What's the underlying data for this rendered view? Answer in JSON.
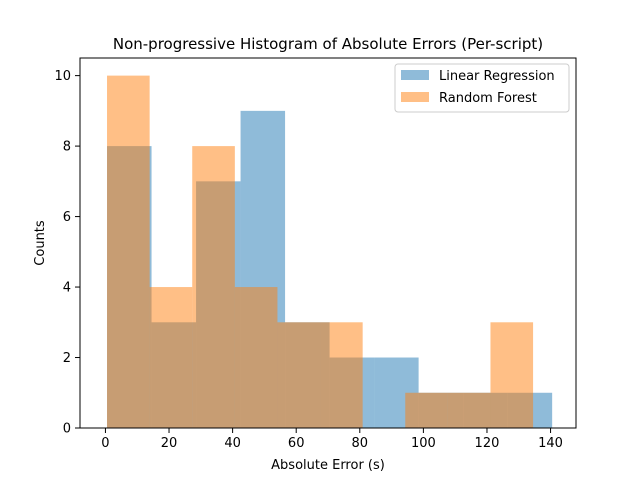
{
  "chart_data": {
    "type": "histogram",
    "title": "Non-progressive Histogram of Absolute Errors (Per-script)",
    "xlabel": "Absolute Error (s)",
    "ylabel": "Counts",
    "xlim": [
      -8,
      148
    ],
    "ylim": [
      0,
      10.5
    ],
    "xticks": [
      0,
      20,
      40,
      60,
      80,
      100,
      120,
      140
    ],
    "yticks": [
      0,
      2,
      4,
      6,
      8,
      10
    ],
    "grid": false,
    "legend_position": "top-right",
    "series": [
      {
        "name": "Linear Regression",
        "color": "#1f77b4",
        "alpha": 0.5,
        "bins": [
          {
            "x0": 0.5,
            "x1": 14.5,
            "count": 8
          },
          {
            "x0": 14.5,
            "x1": 28.5,
            "count": 3
          },
          {
            "x0": 28.5,
            "x1": 42.5,
            "count": 7
          },
          {
            "x0": 42.5,
            "x1": 56.5,
            "count": 9
          },
          {
            "x0": 56.5,
            "x1": 70.5,
            "count": 3
          },
          {
            "x0": 70.5,
            "x1": 84.5,
            "count": 2
          },
          {
            "x0": 84.5,
            "x1": 98.5,
            "count": 2
          },
          {
            "x0": 98.5,
            "x1": 112.5,
            "count": 1
          },
          {
            "x0": 112.5,
            "x1": 126.5,
            "count": 1
          },
          {
            "x0": 126.5,
            "x1": 140.5,
            "count": 1
          }
        ]
      },
      {
        "name": "Random Forest",
        "color": "#ff7f0e",
        "alpha": 0.5,
        "bins": [
          {
            "x0": 0.5,
            "x1": 13.9,
            "count": 10
          },
          {
            "x0": 13.9,
            "x1": 27.3,
            "count": 4
          },
          {
            "x0": 27.3,
            "x1": 40.7,
            "count": 8
          },
          {
            "x0": 40.7,
            "x1": 54.1,
            "count": 4
          },
          {
            "x0": 54.1,
            "x1": 67.5,
            "count": 3
          },
          {
            "x0": 67.5,
            "x1": 80.9,
            "count": 3
          },
          {
            "x0": 80.9,
            "x1": 94.3,
            "count": 0
          },
          {
            "x0": 94.3,
            "x1": 107.7,
            "count": 1
          },
          {
            "x0": 107.7,
            "x1": 121.1,
            "count": 1
          },
          {
            "x0": 121.1,
            "x1": 134.5,
            "count": 3
          }
        ]
      }
    ]
  }
}
